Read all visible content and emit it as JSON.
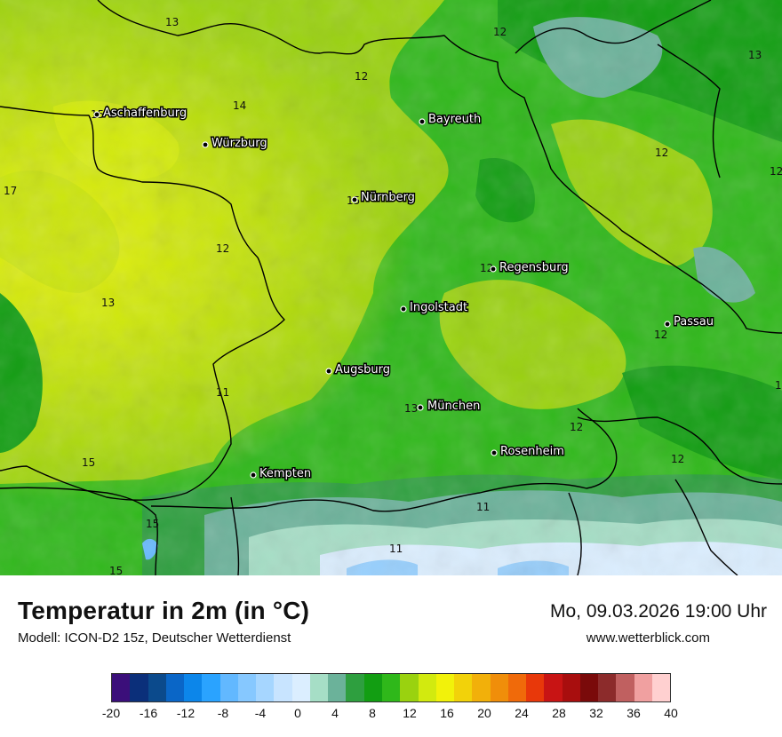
{
  "title": "Temperatur in 2m (in °C)",
  "subtitle": "Modell: ICON-D2 15z, Deutscher Wetterdienst",
  "datetime": "Mo, 09.03.2026 19:00 Uhr",
  "website": "www.wetterblick.com",
  "colors": {
    "palette": [
      "#3b0f7a",
      "#0b2f7a",
      "#0b4a8c",
      "#0a66c7",
      "#0c86ea",
      "#2aa3ff",
      "#62b8ff",
      "#86c8ff",
      "#a6d6ff",
      "#c8e4ff",
      "#dbeeff",
      "#a6dec6",
      "#6bb29a",
      "#2e9f3f",
      "#129e12",
      "#2fb81a",
      "#9ad20f",
      "#d2ea0f",
      "#f2f20a",
      "#f2d20a",
      "#f2b00a",
      "#f08e0a",
      "#f06a0a",
      "#e8380a",
      "#c81414",
      "#a80e0e",
      "#7a0a0a",
      "#8c2b2b",
      "#c06060",
      "#f0a0a0",
      "#ffd0d0"
    ]
  },
  "colorbar_ticks": [
    "-20",
    "-16",
    "-12",
    "-8",
    "-4",
    "0",
    "4",
    "8",
    "12",
    "16",
    "20",
    "24",
    "28",
    "32",
    "36",
    "40"
  ],
  "cities": [
    {
      "name": "Aschaffenburg"
    },
    {
      "name": "Würzburg"
    },
    {
      "name": "Bayreuth"
    },
    {
      "name": "Nürnberg"
    },
    {
      "name": "Regensburg"
    },
    {
      "name": "Ingolstadt"
    },
    {
      "name": "Passau"
    },
    {
      "name": "Augsburg"
    },
    {
      "name": "München"
    },
    {
      "name": "Rosenheim"
    },
    {
      "name": "Kempten"
    }
  ],
  "isotherm_labels": [
    "13",
    "12",
    "13",
    "12",
    "14",
    "15",
    "12",
    "17",
    "12",
    "15",
    "12",
    "12",
    "11",
    "13",
    "1",
    "13",
    "12",
    "12",
    "11",
    "11",
    "15",
    "15",
    "15",
    "12"
  ]
}
